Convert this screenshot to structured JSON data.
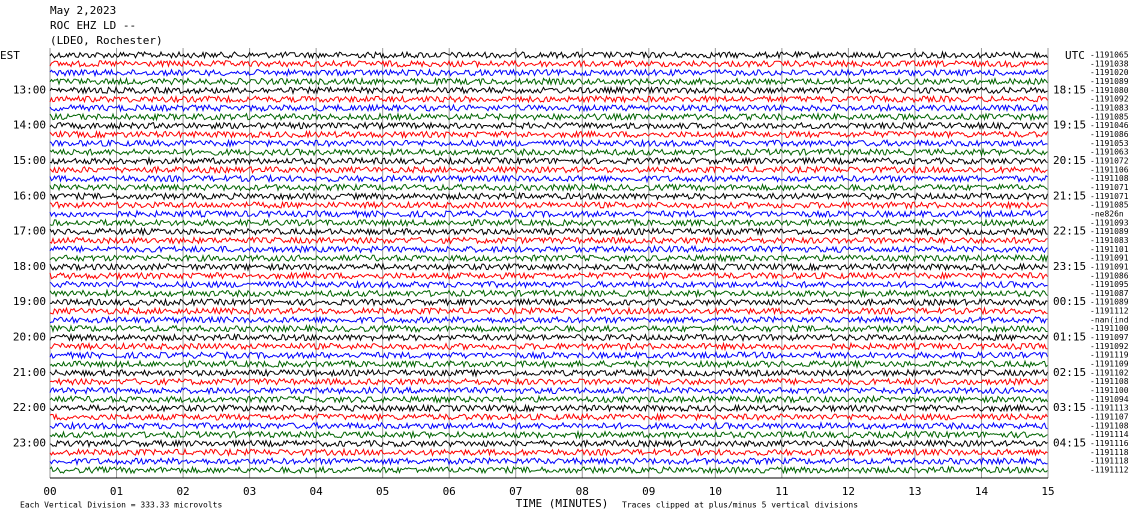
{
  "chart_data": {
    "type": "helicorder",
    "header": [
      "May 2,2023",
      "ROC EHZ LD --",
      "(LDEO, Rochester)"
    ],
    "left_zone": "EST",
    "right_zone": "UTC",
    "left_hours": [
      "13:00",
      "14:00",
      "15:00",
      "16:00",
      "17:00",
      "18:00",
      "19:00",
      "20:00",
      "21:00",
      "22:00",
      "23:00"
    ],
    "right_hours": [
      "18:15",
      "19:15",
      "20:15",
      "21:15",
      "22:15",
      "23:15",
      "00:15",
      "01:15",
      "02:15",
      "03:15",
      "04:15"
    ],
    "trace_colors": [
      "#000000",
      "#ff0000",
      "#0000ff",
      "#006400"
    ],
    "trace_labels": [
      "-1191065",
      "-1191038",
      "-1191020",
      "-1191089",
      "-1191080",
      "-1191092",
      "-1191083",
      "-1191085",
      "-1191046",
      "-1191086",
      "-1191053",
      "-1191063",
      "-1191072",
      "-1191106",
      "-1191108",
      "-1191071",
      "-1191071",
      "-1191085",
      "-ne826n",
      "-1191093",
      "-1191089",
      "-1191083",
      "-1191101",
      "-1191091",
      "-1191091",
      "-1191086",
      "-1191095",
      "-1191087",
      "-1191089",
      "-1191112",
      "-nan(ind)",
      "-1191100",
      "-1191097",
      "-1191092",
      "-1191119",
      "-1191109",
      "-1191102",
      "-1191108",
      "-1191100",
      "-1191094",
      "-1191113",
      "-1191107",
      "-1191108",
      "-1191114",
      "-1191116",
      "-1191118",
      "-1191118",
      "-1191112"
    ],
    "xlabel": "TIME (MINUTES)",
    "xlim": [
      0,
      15
    ],
    "xticks": [
      {
        "value": 0,
        "label": "00"
      },
      {
        "value": 1,
        "label": "01"
      },
      {
        "value": 2,
        "label": "02"
      },
      {
        "value": 3,
        "label": "03"
      },
      {
        "value": 4,
        "label": "04"
      },
      {
        "value": 5,
        "label": "05"
      },
      {
        "value": 6,
        "label": "06"
      },
      {
        "value": 7,
        "label": "07"
      },
      {
        "value": 8,
        "label": "08"
      },
      {
        "value": 9,
        "label": "09"
      },
      {
        "value": 10,
        "label": "10"
      },
      {
        "value": 11,
        "label": "11"
      },
      {
        "value": 12,
        "label": "12"
      },
      {
        "value": 13,
        "label": "13"
      },
      {
        "value": 14,
        "label": "14"
      },
      {
        "value": 15,
        "label": "15"
      }
    ],
    "footnote_left": "Each Vertical Division =  333.33 microvolts",
    "footnote_right": "Traces clipped at plus/minus 5 vertical divisions",
    "grid": true
  }
}
